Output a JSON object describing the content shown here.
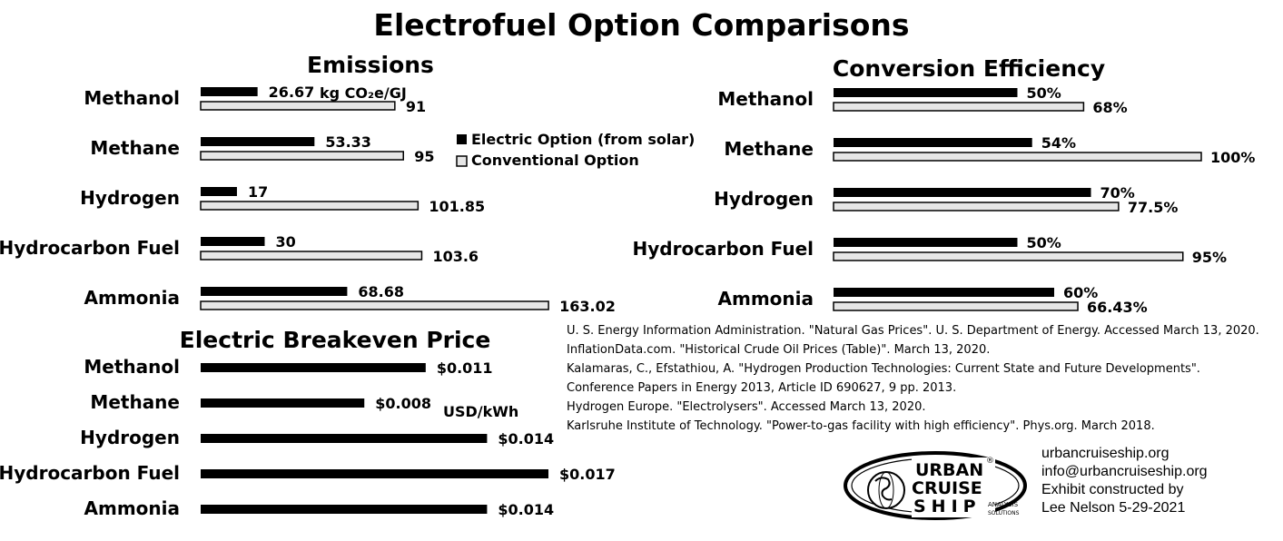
{
  "title": "Electrofuel Option Comparisons",
  "legend": {
    "electric": "Electric Option (from solar)",
    "conventional": "Conventional Option"
  },
  "colors": {
    "electric": "#000000",
    "conventional": "#e6e6e6",
    "outline": "#000000"
  },
  "chart_data": [
    {
      "type": "bar",
      "orientation": "horizontal",
      "title": "Emissions",
      "unit_label": "kg CO₂e/GJ",
      "categories": [
        "Methanol",
        "Methane",
        "Hydrogen",
        "Hydrocarbon Fuel",
        "Ammonia"
      ],
      "series": [
        {
          "name": "Electric Option (from solar)",
          "values": [
            26.67,
            53.33,
            17,
            30,
            68.68
          ],
          "labels": [
            "26.67",
            "53.33",
            "17",
            "30",
            "68.68"
          ]
        },
        {
          "name": "Conventional Option",
          "values": [
            91,
            95,
            101.85,
            103.6,
            163.02
          ],
          "labels": [
            "91",
            "95",
            "101.85",
            "103.6",
            "163.02"
          ]
        }
      ]
    },
    {
      "type": "bar",
      "orientation": "horizontal",
      "title": "Conversion Efficiency",
      "categories": [
        "Methanol",
        "Methane",
        "Hydrogen",
        "Hydrocarbon Fuel",
        "Ammonia"
      ],
      "series": [
        {
          "name": "Electric Option (from solar)",
          "values": [
            50,
            54,
            70,
            50,
            60
          ],
          "labels": [
            "50%",
            "54%",
            "70%",
            "50%",
            "60%"
          ]
        },
        {
          "name": "Conventional Option",
          "values": [
            68,
            100,
            77.5,
            95,
            66.43
          ],
          "labels": [
            "68%",
            "100%",
            "77.5%",
            "95%",
            "66.43%"
          ]
        }
      ]
    },
    {
      "type": "bar",
      "orientation": "horizontal",
      "title": "Electric Breakeven Price",
      "unit_label": "USD/kWh",
      "categories": [
        "Methanol",
        "Methane",
        "Hydrogen",
        "Hydrocarbon Fuel",
        "Ammonia"
      ],
      "series": [
        {
          "values": [
            0.011,
            0.008,
            0.014,
            0.017,
            0.014
          ],
          "labels": [
            "$0.011",
            "$0.008",
            "$0.014",
            "$0.017",
            "$0.014"
          ]
        }
      ]
    }
  ],
  "sources": [
    "U. S. Energy Information Administration. \"Natural Gas Prices\". U. S. Department of Energy. Accessed March 13, 2020.",
    "InflationData.com. \"Historical Crude Oil Prices (Table)\". March 13, 2020.",
    "Kalamaras, C., Efstathiou, A. \"Hydrogen Production Technologies: Current State and Future Developments\".",
    "Conference Papers in Energy 2013, Article ID 690627, 9 pp. 2013.",
    "Hydrogen Europe. \"Electrolysers\". Accessed March 13, 2020.",
    "Karlsruhe Institute of Technology. \"Power-to-gas facility with high efficiency\". Phys.org. March 2018."
  ],
  "contact": [
    "urbancruiseship.org",
    "info@urbancruiseship.org",
    "Exhibit constructed by",
    "Lee Nelson 5-29-2021"
  ],
  "logo": {
    "line1": "URBAN",
    "line2": "CRUISE",
    "line3": "SHIP",
    "tag1": "ANALYSIS",
    "tag2": "SOLUTIONS",
    "mark": "®"
  }
}
